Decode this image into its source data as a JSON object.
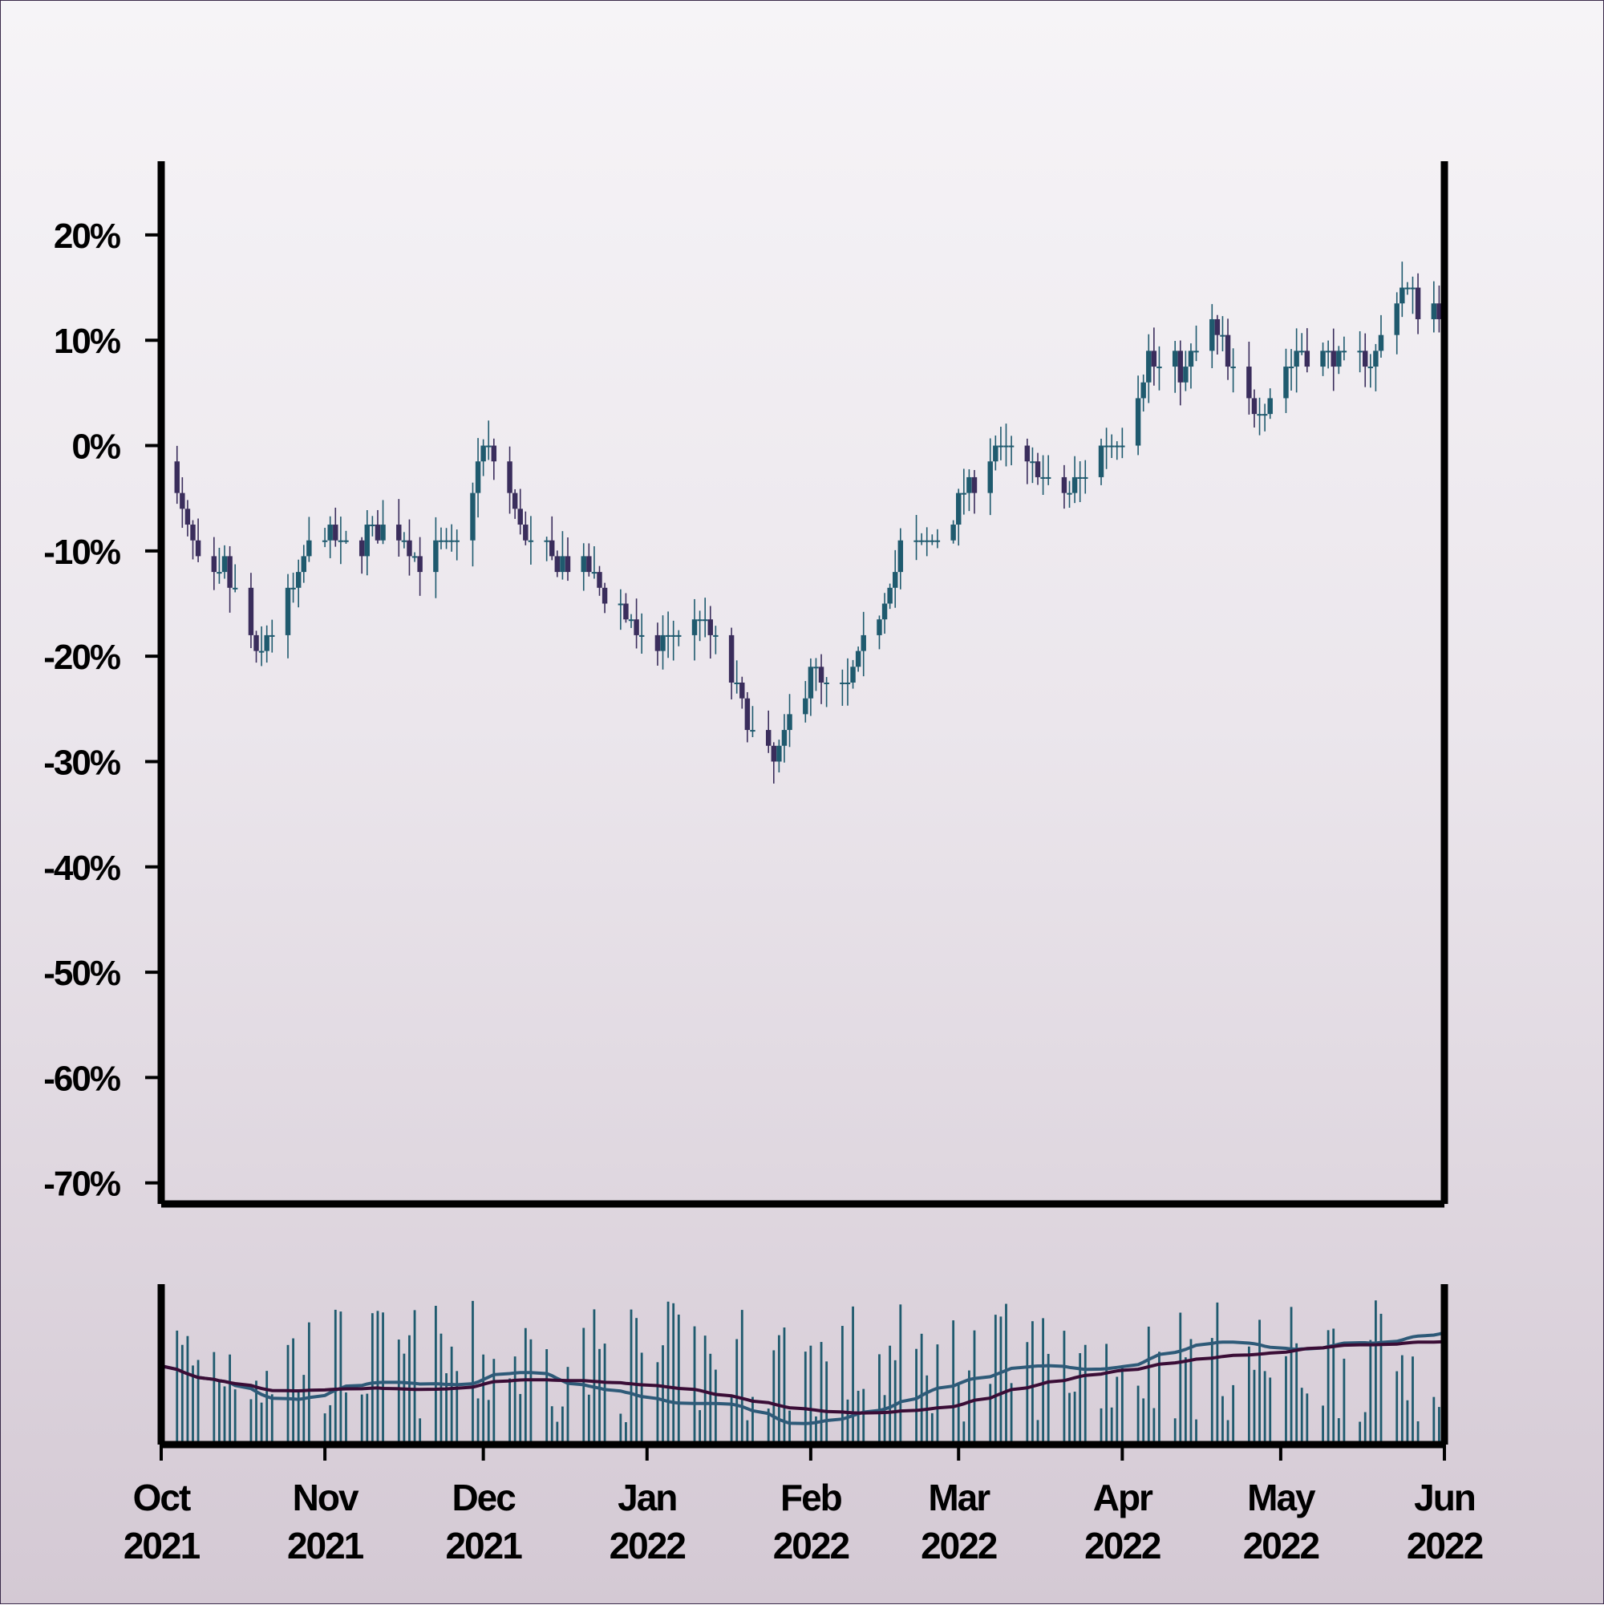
{
  "chart_data": {
    "type": "candlestick",
    "title": "",
    "xlabel": "",
    "ylabel": "",
    "x_range": [
      "2021-10-01",
      "2022-06-01"
    ],
    "y_range_percent": [
      -72,
      27
    ],
    "y_ticks": [
      "20%",
      "10%",
      "0%",
      "-10%",
      "-20%",
      "-30%",
      "-40%",
      "-50%",
      "-60%",
      "-70%"
    ],
    "y_tick_values": [
      20,
      10,
      0,
      -10,
      -20,
      -30,
      -40,
      -50,
      -60,
      -70
    ],
    "x_ticks": [
      {
        "month": "Oct",
        "year": "2021",
        "date": "2021-10-01"
      },
      {
        "month": "Nov",
        "year": "2021",
        "date": "2021-11-01"
      },
      {
        "month": "Dec",
        "year": "2021",
        "date": "2021-12-01"
      },
      {
        "month": "Jan",
        "year": "2022",
        "date": "2022-01-01"
      },
      {
        "month": "Feb",
        "year": "2022",
        "date": "2022-02-01"
      },
      {
        "month": "Mar",
        "year": "2022",
        "date": "2022-03-01"
      },
      {
        "month": "Apr",
        "year": "2022",
        "date": "2022-04-01"
      },
      {
        "month": "May",
        "year": "2022",
        "date": "2022-05-01"
      },
      {
        "month": "Jun",
        "year": "2022",
        "date": "2022-06-01"
      }
    ],
    "price_path": {
      "description": "daily percent change vs 2021-10-01 close, read at key points",
      "dates": [
        "2021-10-01",
        "2021-10-09",
        "2021-10-13",
        "2021-10-19",
        "2021-10-24",
        "2021-10-31",
        "2021-11-05",
        "2021-11-13",
        "2021-11-19",
        "2021-11-26",
        "2021-12-01",
        "2021-12-03",
        "2021-12-10",
        "2021-12-20",
        "2021-12-28",
        "2022-01-01",
        "2022-01-06",
        "2022-01-11",
        "2022-01-16",
        "2022-01-21",
        "2022-01-25",
        "2022-02-01",
        "2022-02-06",
        "2022-02-13",
        "2022-02-18",
        "2022-02-26",
        "2022-03-08",
        "2022-03-15",
        "2022-03-20",
        "2022-03-25",
        "2022-04-01",
        "2022-04-06",
        "2022-04-13",
        "2022-04-18",
        "2022-04-23",
        "2022-04-27",
        "2022-05-01",
        "2022-05-04",
        "2022-05-09",
        "2022-05-18",
        "2022-05-23",
        "2022-05-28",
        "2022-06-01"
      ],
      "close": [
        0,
        -13,
        -12,
        -20,
        -16,
        -8,
        -10,
        -7,
        -11,
        -9,
        0,
        -1,
        -10,
        -12,
        -16,
        -20,
        -18,
        -16,
        -20,
        -28,
        -30,
        -21,
        -25,
        -17,
        -10,
        -8,
        0,
        -2,
        -5,
        -2,
        1,
        8,
        7,
        12,
        5,
        4,
        6,
        9,
        8,
        8,
        15,
        13,
        13
      ]
    },
    "colors": {
      "up": "#1f5a6e",
      "down": "#3a2d5c",
      "ma_fast": "#2e5a78",
      "ma_slow": "#3a0d36",
      "volume": "#1f5a6e"
    },
    "volume_panel": {
      "series": [
        "volume",
        "moving average (fast)",
        "moving average (slow)"
      ],
      "axis_labels": "none"
    },
    "grid": false,
    "legend": "none"
  }
}
